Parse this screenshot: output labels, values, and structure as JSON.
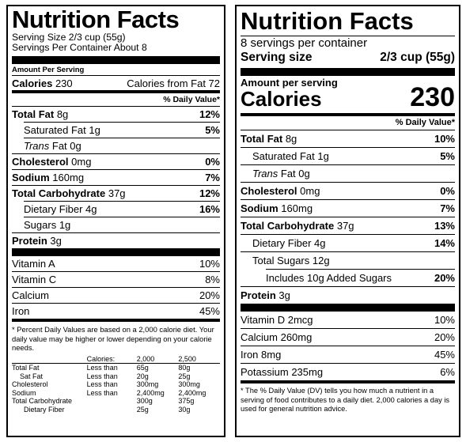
{
  "left_label": {
    "title": "Nutrition Facts",
    "serving_size": "Serving Size 2/3 cup (55g)",
    "servings_per_container": "Servings Per Container About 8",
    "amount_per_serving": "Amount Per Serving",
    "calories_label": "Calories",
    "calories_value": "230",
    "calories_from_fat": "Calories from Fat 72",
    "daily_value_header": "% Daily Value*",
    "nutrients": [
      {
        "name": "Total Fat",
        "amount": "8g",
        "dv": "12%"
      },
      {
        "name": "Saturated Fat",
        "amount": "1g",
        "dv": "5%"
      },
      {
        "name": "Trans",
        "amount": "Fat 0g",
        "dv": ""
      },
      {
        "name": "Cholesterol",
        "amount": "0mg",
        "dv": "0%"
      },
      {
        "name": "Sodium",
        "amount": "160mg",
        "dv": "7%"
      },
      {
        "name": "Total Carbohydrate",
        "amount": "37g",
        "dv": "12%"
      },
      {
        "name": "Dietary Fiber",
        "amount": "4g",
        "dv": "16%"
      },
      {
        "name": "Sugars",
        "amount": "1g",
        "dv": ""
      },
      {
        "name": "Protein",
        "amount": "3g",
        "dv": ""
      }
    ],
    "vitamins": [
      {
        "name": "Vitamin A",
        "dv": "10%"
      },
      {
        "name": "Vitamin C",
        "dv": "8%"
      },
      {
        "name": "Calcium",
        "dv": "20%"
      },
      {
        "name": "Iron",
        "dv": "45%"
      }
    ],
    "footnote": "* Percent Daily Values are based on a 2,000 calorie diet. Your daily value may be higher or lower depending on your calorie needs.",
    "dv_table": {
      "header": [
        "",
        "Calories:",
        "2,000",
        "2,500"
      ],
      "rows": [
        [
          "Total Fat",
          "Less than",
          "65g",
          "80g"
        ],
        [
          "Sat Fat",
          "Less than",
          "20g",
          "25g"
        ],
        [
          "Cholesterol",
          "Less than",
          "300mg",
          "300mg"
        ],
        [
          "Sodium",
          "Less than",
          "2,400mg",
          "2,400mg"
        ],
        [
          "Total Carbohydrate",
          "",
          "300g",
          "375g"
        ],
        [
          "Dietary Fiber",
          "",
          "25g",
          "30g"
        ]
      ]
    }
  },
  "right_label": {
    "title": "Nutrition Facts",
    "servings_per_container": "8 servings per container",
    "serving_size_label": "Serving size",
    "serving_size_value": "2/3 cup (55g)",
    "amount_per_serving": "Amount per serving",
    "calories_label": "Calories",
    "calories_value": "230",
    "daily_value_header": "% Daily Value*",
    "nutrients": [
      {
        "name": "Total Fat",
        "amount": "8g",
        "dv": "10%"
      },
      {
        "name": "Saturated Fat",
        "amount": "1g",
        "dv": "5%"
      },
      {
        "name": "Trans",
        "amount": "Fat 0g",
        "dv": ""
      },
      {
        "name": "Cholesterol",
        "amount": "0mg",
        "dv": "0%"
      },
      {
        "name": "Sodium",
        "amount": "160mg",
        "dv": "7%"
      },
      {
        "name": "Total Carbohydrate",
        "amount": "37g",
        "dv": "13%"
      },
      {
        "name": "Dietary Fiber",
        "amount": "4g",
        "dv": "14%"
      },
      {
        "name": "Total Sugars",
        "amount": "12g",
        "dv": ""
      },
      {
        "name": "Includes 10g Added Sugars",
        "amount": "",
        "dv": "20%"
      },
      {
        "name": "Protein",
        "amount": "3g",
        "dv": ""
      }
    ],
    "vitamins": [
      {
        "name": "Vitamin D",
        "amount": "2mcg",
        "dv": "10%"
      },
      {
        "name": "Calcium",
        "amount": "260mg",
        "dv": "20%"
      },
      {
        "name": "Iron",
        "amount": "8mg",
        "dv": "45%"
      },
      {
        "name": "Potassium",
        "amount": "235mg",
        "dv": "6%"
      }
    ],
    "footnote": "* The % Daily Value (DV) tells you how much a nutrient in a serving of food contributes to a daily diet. 2,000 calories a day is used for general nutrition advice."
  }
}
